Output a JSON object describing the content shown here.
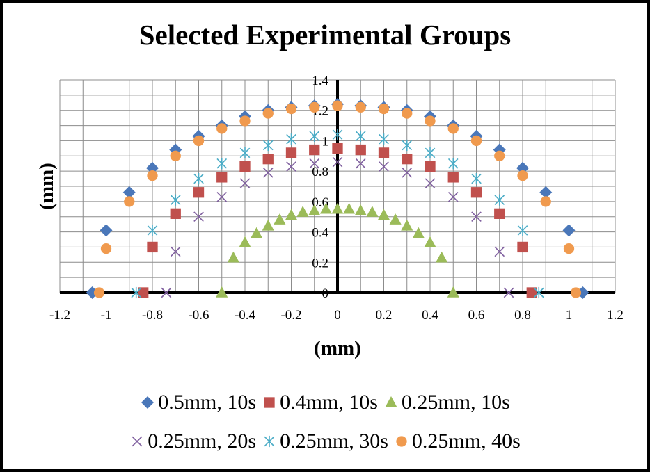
{
  "chart_data": {
    "type": "scatter",
    "title": "Selected Experimental Groups",
    "xlabel": "(mm)",
    "ylabel": "(mm)",
    "xlim": [
      -1.2,
      1.2
    ],
    "ylim": [
      0,
      1.4
    ],
    "x_ticks": [
      "-1.2",
      "-1",
      "-0.8",
      "-0.6",
      "-0.4",
      "-0.2",
      "0",
      "0.2",
      "0.4",
      "0.6",
      "0.8",
      "1",
      "1.2"
    ],
    "y_ticks": [
      "0",
      "0.2",
      "0.4",
      "0.6",
      "0.8",
      "1",
      "1.2",
      "1.4"
    ],
    "grid": true,
    "legend_position": "bottom",
    "series": [
      {
        "name": "0.5mm, 10s",
        "marker": "diamond",
        "color": "#4a77b9",
        "points": [
          [
            -1.06,
            0
          ],
          [
            -1.0,
            0.41
          ],
          [
            -0.9,
            0.66
          ],
          [
            -0.8,
            0.82
          ],
          [
            -0.7,
            0.94
          ],
          [
            -0.6,
            1.03
          ],
          [
            -0.5,
            1.1
          ],
          [
            -0.4,
            1.16
          ],
          [
            -0.3,
            1.2
          ],
          [
            -0.2,
            1.22
          ],
          [
            -0.1,
            1.23
          ],
          [
            0,
            1.24
          ],
          [
            0.1,
            1.23
          ],
          [
            0.2,
            1.22
          ],
          [
            0.3,
            1.2
          ],
          [
            0.4,
            1.16
          ],
          [
            0.5,
            1.1
          ],
          [
            0.6,
            1.03
          ],
          [
            0.7,
            0.94
          ],
          [
            0.8,
            0.82
          ],
          [
            0.9,
            0.66
          ],
          [
            1.0,
            0.41
          ],
          [
            1.06,
            0
          ]
        ]
      },
      {
        "name": "0.4mm, 10s",
        "marker": "square",
        "color": "#c0504d",
        "points": [
          [
            -0.84,
            0
          ],
          [
            -0.8,
            0.3
          ],
          [
            -0.7,
            0.52
          ],
          [
            -0.6,
            0.66
          ],
          [
            -0.5,
            0.76
          ],
          [
            -0.4,
            0.83
          ],
          [
            -0.3,
            0.88
          ],
          [
            -0.2,
            0.92
          ],
          [
            -0.1,
            0.94
          ],
          [
            0,
            0.95
          ],
          [
            0.1,
            0.94
          ],
          [
            0.2,
            0.92
          ],
          [
            0.3,
            0.88
          ],
          [
            0.4,
            0.83
          ],
          [
            0.5,
            0.76
          ],
          [
            0.6,
            0.66
          ],
          [
            0.7,
            0.52
          ],
          [
            0.8,
            0.3
          ],
          [
            0.84,
            0
          ]
        ]
      },
      {
        "name": "0.25mm, 10s",
        "marker": "triangle",
        "color": "#9bbb59",
        "points": [
          [
            -0.5,
            0
          ],
          [
            -0.45,
            0.23
          ],
          [
            -0.4,
            0.33
          ],
          [
            -0.35,
            0.39
          ],
          [
            -0.3,
            0.44
          ],
          [
            -0.25,
            0.48
          ],
          [
            -0.2,
            0.51
          ],
          [
            -0.15,
            0.53
          ],
          [
            -0.1,
            0.54
          ],
          [
            -0.05,
            0.55
          ],
          [
            0,
            0.55
          ],
          [
            0.05,
            0.55
          ],
          [
            0.1,
            0.54
          ],
          [
            0.15,
            0.53
          ],
          [
            0.2,
            0.51
          ],
          [
            0.25,
            0.48
          ],
          [
            0.3,
            0.44
          ],
          [
            0.35,
            0.39
          ],
          [
            0.4,
            0.33
          ],
          [
            0.45,
            0.23
          ],
          [
            0.5,
            0
          ]
        ]
      },
      {
        "name": "0.25mm, 20s",
        "marker": "x",
        "color": "#7f5f9f",
        "points": [
          [
            -0.74,
            0
          ],
          [
            -0.7,
            0.27
          ],
          [
            -0.6,
            0.5
          ],
          [
            -0.5,
            0.63
          ],
          [
            -0.4,
            0.72
          ],
          [
            -0.3,
            0.79
          ],
          [
            -0.2,
            0.83
          ],
          [
            -0.1,
            0.85
          ],
          [
            0,
            0.86
          ],
          [
            0.1,
            0.85
          ],
          [
            0.2,
            0.83
          ],
          [
            0.3,
            0.79
          ],
          [
            0.4,
            0.72
          ],
          [
            0.5,
            0.63
          ],
          [
            0.6,
            0.5
          ],
          [
            0.7,
            0.27
          ],
          [
            0.74,
            0
          ]
        ]
      },
      {
        "name": "0.25mm, 30s",
        "marker": "asterisk",
        "color": "#4bacc6",
        "points": [
          [
            -0.87,
            0
          ],
          [
            -0.8,
            0.41
          ],
          [
            -0.7,
            0.61
          ],
          [
            -0.6,
            0.75
          ],
          [
            -0.5,
            0.85
          ],
          [
            -0.4,
            0.92
          ],
          [
            -0.3,
            0.97
          ],
          [
            -0.2,
            1.01
          ],
          [
            -0.1,
            1.03
          ],
          [
            0,
            1.04
          ],
          [
            0.1,
            1.03
          ],
          [
            0.2,
            1.01
          ],
          [
            0.3,
            0.97
          ],
          [
            0.4,
            0.92
          ],
          [
            0.5,
            0.85
          ],
          [
            0.6,
            0.75
          ],
          [
            0.7,
            0.61
          ],
          [
            0.8,
            0.41
          ],
          [
            0.87,
            0
          ]
        ]
      },
      {
        "name": "0.25mm, 40s",
        "marker": "circle",
        "color": "#f09a4e",
        "points": [
          [
            -1.03,
            0
          ],
          [
            -1.0,
            0.29
          ],
          [
            -0.9,
            0.6
          ],
          [
            -0.8,
            0.77
          ],
          [
            -0.7,
            0.9
          ],
          [
            -0.6,
            1.0
          ],
          [
            -0.5,
            1.08
          ],
          [
            -0.4,
            1.13
          ],
          [
            -0.3,
            1.18
          ],
          [
            -0.2,
            1.21
          ],
          [
            -0.1,
            1.22
          ],
          [
            0,
            1.23
          ],
          [
            0.1,
            1.22
          ],
          [
            0.2,
            1.21
          ],
          [
            0.3,
            1.18
          ],
          [
            0.4,
            1.13
          ],
          [
            0.5,
            1.08
          ],
          [
            0.6,
            1.0
          ],
          [
            0.7,
            0.9
          ],
          [
            0.8,
            0.77
          ],
          [
            0.9,
            0.6
          ],
          [
            1.0,
            0.29
          ],
          [
            1.03,
            0
          ]
        ]
      }
    ]
  }
}
